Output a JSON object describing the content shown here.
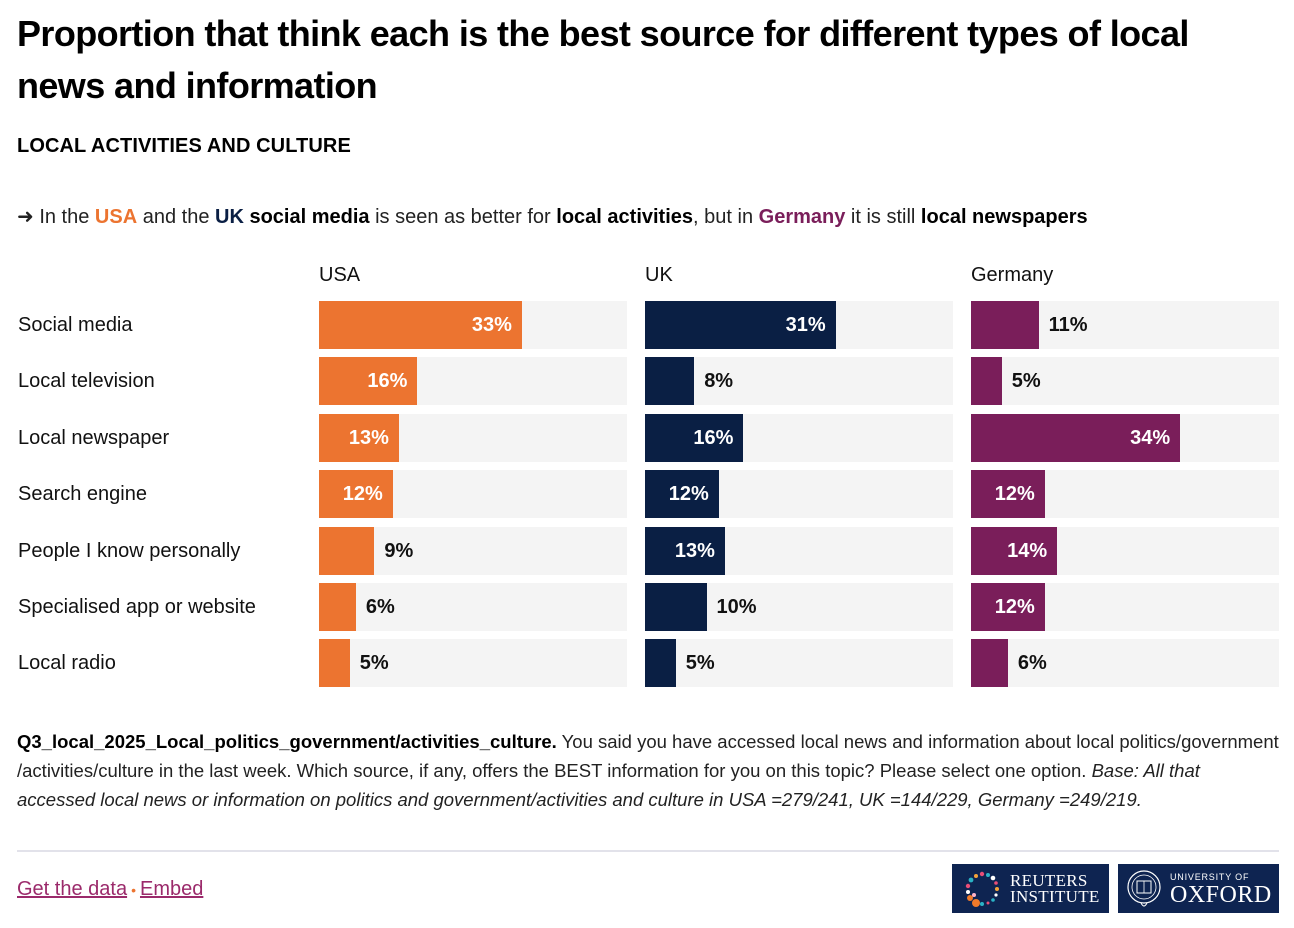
{
  "header": {
    "title": "Proportion that think each is the best source for different types of local news and information",
    "subtitle": "LOCAL ACTIVITIES AND CULTURE"
  },
  "insight": {
    "arrow": "➜",
    "parts": {
      "p1": " In the ",
      "usa": "USA",
      "p2": " and the ",
      "uk": "UK",
      "p3": " ",
      "b1": "social media",
      "p4": " is seen as better for ",
      "b2": "local activities",
      "p5": ", but in ",
      "de": "Germany",
      "p6": " it is still ",
      "b3": "local newspapers"
    }
  },
  "colors": {
    "usa": "#ec7430",
    "uk": "#0a1f44",
    "germany": "#7a1e5a",
    "track": "#f4f4f4",
    "link": "#9b2a6b"
  },
  "chart_data": {
    "type": "bar",
    "orientation": "horizontal",
    "layout": "small-multiples",
    "title": "Proportion that think each is the best source for different types of local news and information",
    "subtitle": "LOCAL ACTIVITIES AND CULTURE",
    "categories": [
      "Social media",
      "Local television",
      "Local newspaper",
      "Search engine",
      "People I know personally",
      "Specialised app or website",
      "Local radio"
    ],
    "series": [
      {
        "name": "USA",
        "color": "#ec7430",
        "values": [
          33,
          16,
          13,
          12,
          9,
          6,
          5
        ]
      },
      {
        "name": "UK",
        "color": "#0a1f44",
        "values": [
          31,
          8,
          16,
          12,
          13,
          10,
          5
        ]
      },
      {
        "name": "Germany",
        "color": "#7a1e5a",
        "values": [
          11,
          5,
          34,
          12,
          14,
          12,
          6
        ]
      }
    ],
    "value_suffix": "%",
    "xlim": [
      0,
      50
    ],
    "grid": false,
    "legend": "panel-titles"
  },
  "note": {
    "question_id": "Q3_local_2025_Local_politics_government/activities_culture.",
    "question_text": " You said you have accessed local news and information about local politics/government /activities/culture in the last week. Which source, if any, offers the BEST information for you on this topic? Please select one option. ",
    "base": "Base: All that accessed local news or information on politics and government/activities and culture in USA =279/241, UK =144/229, Germany =249/219."
  },
  "footer": {
    "get_data": "Get the data",
    "separator": "•",
    "embed": "Embed",
    "logo_reuters_line1": "REUTERS",
    "logo_reuters_line2": "INSTITUTE",
    "logo_oxford_line1": "UNIVERSITY OF",
    "logo_oxford_line2": "OXFORD"
  }
}
